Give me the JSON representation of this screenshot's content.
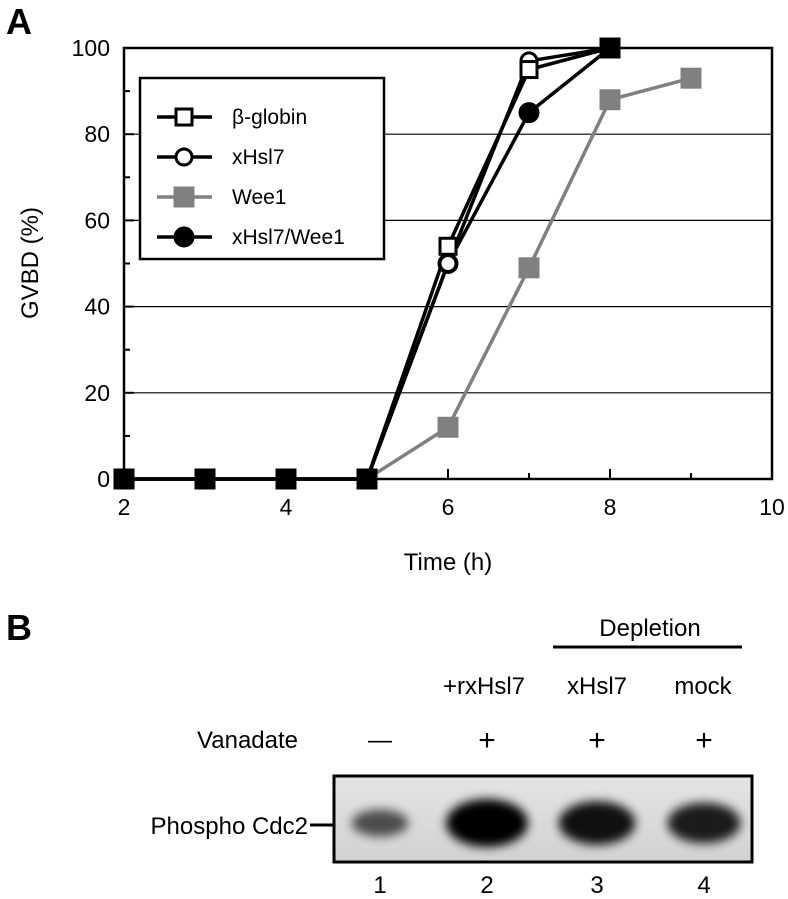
{
  "panel_a_label": "A",
  "panel_b_label": "B",
  "chart_data": {
    "type": "line",
    "xlabel": "Time (h)",
    "ylabel": "GVBD (%)",
    "xlim": [
      2,
      10
    ],
    "ylim": [
      0,
      100
    ],
    "xticks": [
      2,
      4,
      6,
      8,
      10
    ],
    "yticks": [
      0,
      20,
      40,
      60,
      80,
      100
    ],
    "grid": "horizontal",
    "legend_position": "top-left",
    "series": [
      {
        "name": "β-globin",
        "marker": "open-square",
        "color": "#000000",
        "x": [
          2,
          3,
          4,
          5,
          6,
          7,
          8
        ],
        "y": [
          0,
          0,
          0,
          0,
          54,
          95,
          100
        ]
      },
      {
        "name": "xHsl7",
        "marker": "open-circle",
        "color": "#000000",
        "x": [
          2,
          3,
          4,
          5,
          6,
          7,
          8
        ],
        "y": [
          0,
          0,
          0,
          0,
          50,
          97,
          100
        ]
      },
      {
        "name": "Wee1",
        "marker": "filled-square",
        "color": "#808080",
        "x": [
          2,
          3,
          4,
          5,
          6,
          7,
          8,
          9
        ],
        "y": [
          0,
          0,
          0,
          0,
          12,
          49,
          88,
          93
        ]
      },
      {
        "name": "xHsl7/Wee1",
        "marker": "filled-circle",
        "color": "#000000",
        "x": [
          2,
          3,
          4,
          5,
          6,
          7,
          8
        ],
        "y": [
          0,
          0,
          0,
          0,
          50,
          85,
          100
        ]
      }
    ]
  },
  "blot": {
    "group_header": "Depletion",
    "lane_headers": [
      "",
      "+rxHsl7",
      "xHsl7",
      "mock"
    ],
    "vanadate_label": "Vanadate",
    "vanadate_marks": [
      "—",
      "+",
      "+",
      "+"
    ],
    "band_label": "Phospho Cdc2",
    "lane_numbers": [
      "1",
      "2",
      "3",
      "4"
    ],
    "band_intensity": [
      0.3,
      1.0,
      0.85,
      0.75
    ]
  }
}
